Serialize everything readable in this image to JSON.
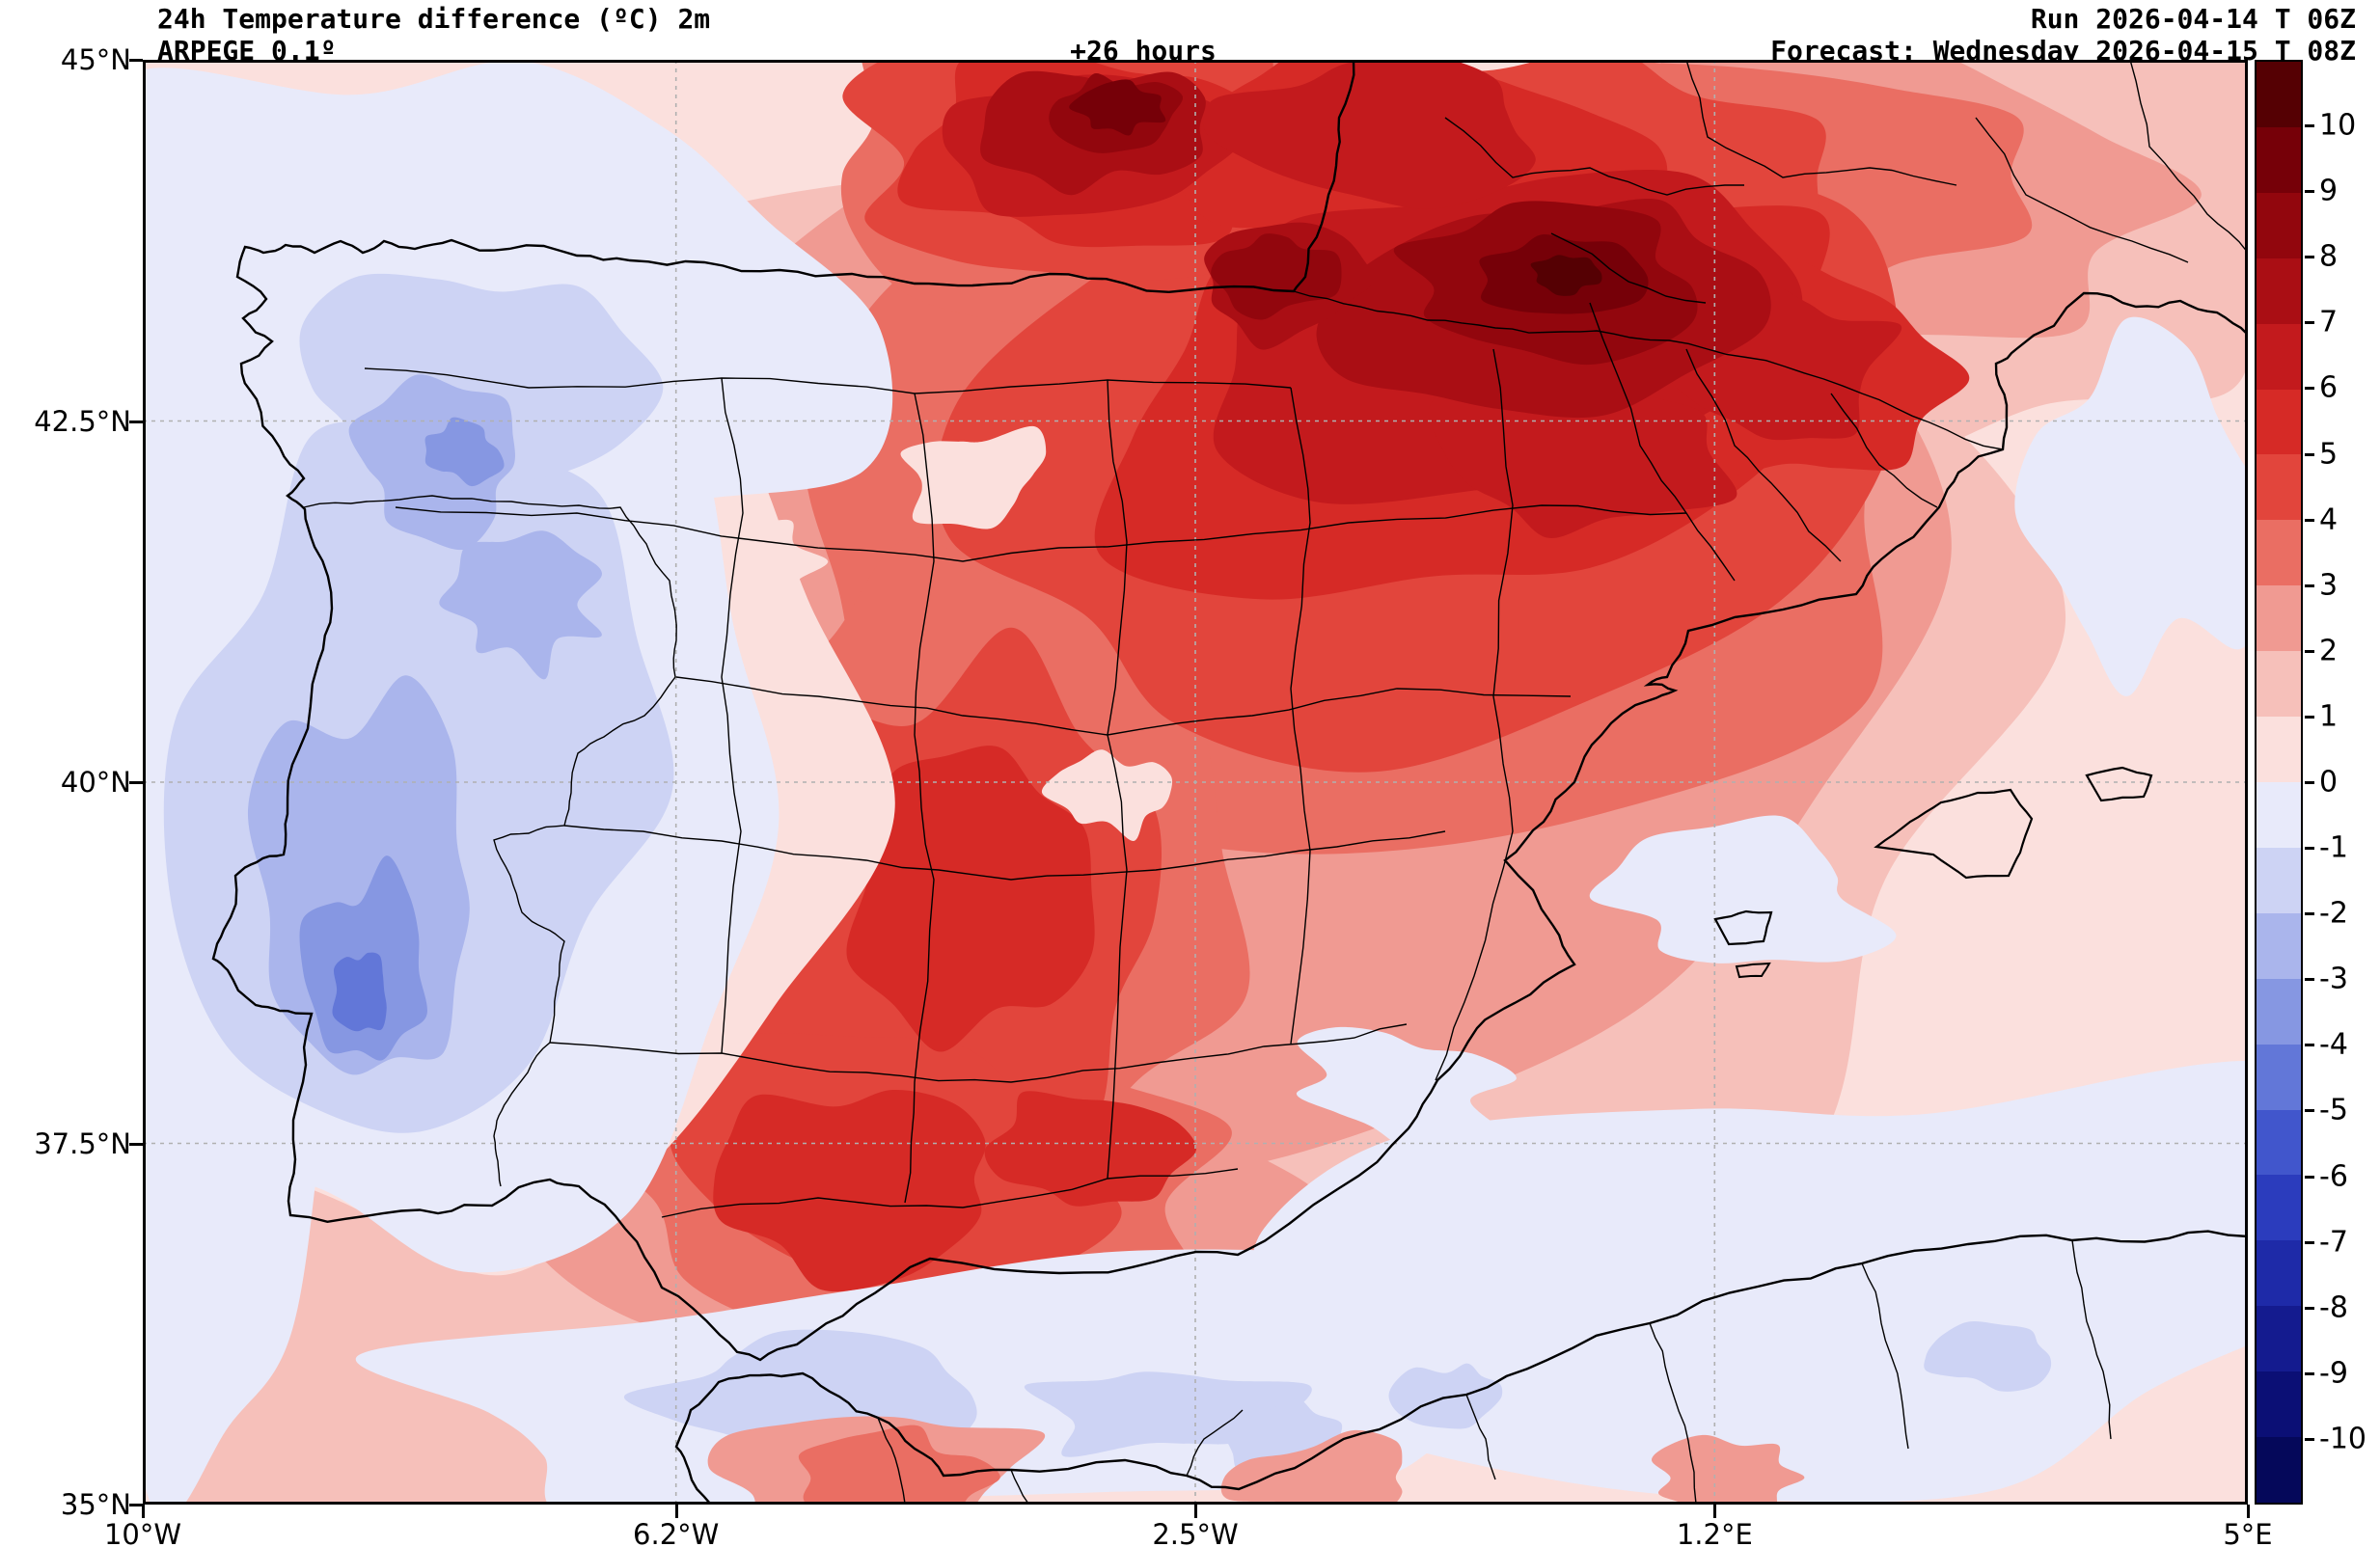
{
  "header": {
    "title": "24h Temperature difference (ºC) 2m",
    "model": "ARPEGE 0.1º",
    "lead": "+26 hours",
    "run": "Run 2026-04-14 T 06Z",
    "forecast": "Forecast: Wednesday 2026-04-15 T 08Z"
  },
  "axes": {
    "lat_ticks": [
      "45°N",
      "42.5°N",
      "40°N",
      "37.5°N",
      "35°N"
    ],
    "lon_ticks": [
      "10°W",
      "6.2°W",
      "2.5°W",
      "1.2°E",
      "5°E"
    ]
  },
  "colorbar": {
    "tick_labels": [
      "10",
      "9",
      "8",
      "7",
      "6",
      "5",
      "4",
      "3",
      "2",
      "1",
      "0",
      "-1",
      "-2",
      "-3",
      "-4",
      "-5",
      "-6",
      "-7",
      "-8",
      "-9",
      "-10"
    ],
    "band_colors": [
      "#550003",
      "#760008",
      "#92060d",
      "#aa0e14",
      "#c31a1d",
      "#d62a26",
      "#e2453c",
      "#ea6e63",
      "#f09a92",
      "#f6c0ba",
      "#fbe0dd",
      "#e8eafa",
      "#cdd3f4",
      "#aab5ec",
      "#8697e2",
      "#6277d8",
      "#4156cc",
      "#2b3cbd",
      "#1e2aa8",
      "#141b8f",
      "#0b0f75",
      "#05085a"
    ]
  },
  "map": {
    "grid_color": "#b0b0b0",
    "boundary_color": "#000000"
  },
  "chart_data": {
    "type": "heatmap",
    "title": "24h Temperature difference (ºC) 2m",
    "model": "ARPEGE 0.1º",
    "run": "Run 2026-04-14 T 06Z",
    "forecast_valid": "Forecast: Wednesday 2026-04-15 T 08Z",
    "lead_time_label": "+26 hours",
    "lead_time_hours": 26,
    "variable": "2 m temperature difference over 24 h",
    "unit": "°C",
    "region": "Iberian Peninsula and western Mediterranean",
    "x_axis": {
      "label": "Longitude",
      "tick_labels": [
        "10°W",
        "6.2°W",
        "2.5°W",
        "1.2°E",
        "5°E"
      ],
      "range_deg": [
        -10,
        5
      ]
    },
    "y_axis": {
      "label": "Latitude",
      "tick_labels": [
        "45°N",
        "42.5°N",
        "40°N",
        "37.5°N",
        "35°N"
      ],
      "range_deg": [
        35,
        45
      ]
    },
    "colorbar": {
      "position": "right",
      "levels": [
        10,
        9,
        8,
        7,
        6,
        5,
        4,
        3,
        2,
        1,
        0,
        -1,
        -2,
        -3,
        -4,
        -5,
        -6,
        -7,
        -8,
        -9,
        -10
      ],
      "unit": "°C"
    },
    "grid": true,
    "field_summary": [
      {
        "area": "Bay of Biscay coast, top centre of map",
        "delta_t_c": "+6 to +10"
      },
      {
        "area": "NE Spain: Ebro valley, Aragon, Catalonia, Pyrenees",
        "delta_t_c": "+4 to +10"
      },
      {
        "area": "SW France",
        "delta_t_c": "+3 to +8"
      },
      {
        "area": "Central and eastern Spain",
        "delta_t_c": "+2 to +6"
      },
      {
        "area": "Andalusia (S Spain)",
        "delta_t_c": "+3 to +6"
      },
      {
        "area": "NW and W coastal strip (Galicia, Portugal)",
        "delta_t_c": "-1 to -4"
      },
      {
        "area": "Central Portugal local minimum",
        "delta_t_c": "-4 to -5"
      },
      {
        "area": "Atlantic NW of the peninsula",
        "delta_t_c": "0 to -1"
      },
      {
        "area": "Alboran Sea and Algerian coastal waters",
        "delta_t_c": "0 to -1"
      },
      {
        "area": "Western Mediterranean and Balearics",
        "delta_t_c": "0 to +2"
      },
      {
        "area": "North Africa interior strip",
        "delta_t_c": "-1 to +3"
      }
    ]
  }
}
